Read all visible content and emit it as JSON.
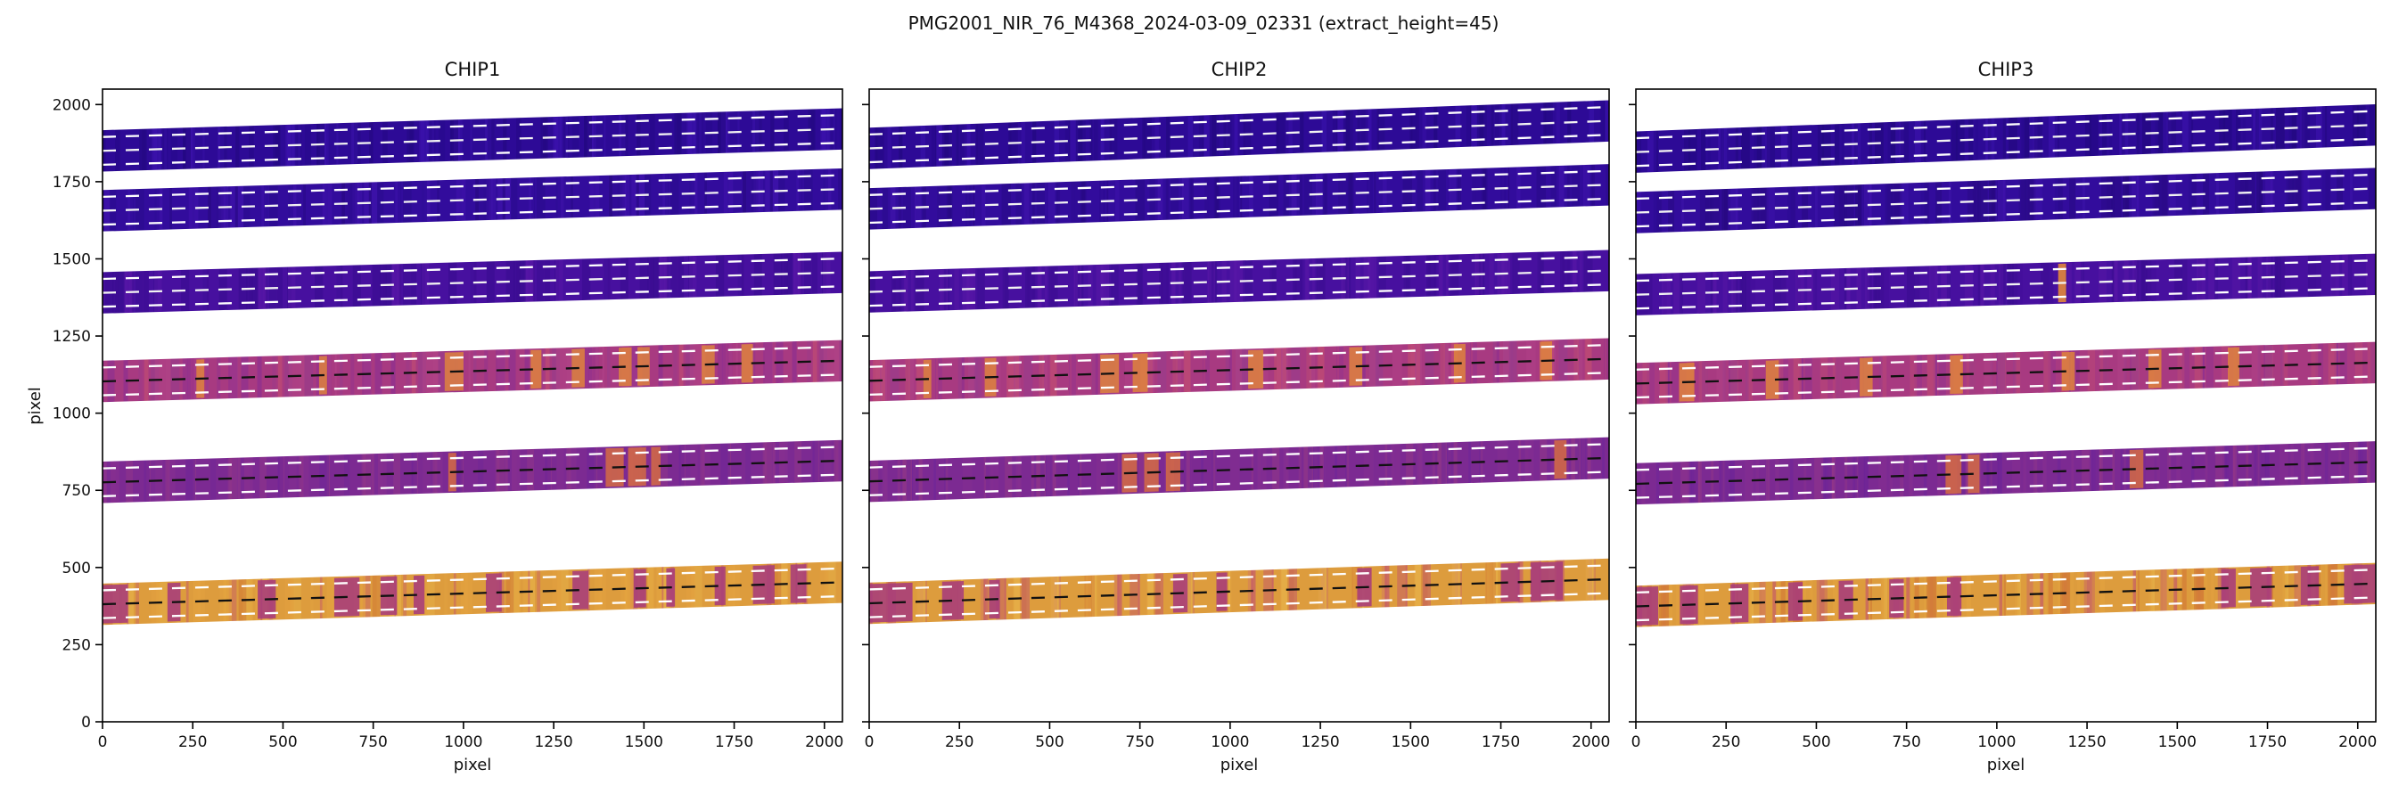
{
  "figure": {
    "title": "PMG2001_NIR_76_M4368_2024-03-09_02331  (extract_height=45)",
    "background": "#ffffff"
  },
  "axes": {
    "xlabel": "pixel",
    "ylabel": "pixel",
    "xlim": [
      0,
      2050
    ],
    "ylim": [
      0,
      2050
    ],
    "xticks": [
      0,
      250,
      500,
      750,
      1000,
      1250,
      1500,
      1750,
      2000
    ],
    "yticks": [
      0,
      250,
      500,
      750,
      1000,
      1250,
      1500,
      1750,
      2000
    ]
  },
  "chart_data": {
    "type": "heatmap",
    "description": "Echelle spectrograph order cutouts (colormap images) with extraction apertures overlaid as dashed lines; center trace dashed, upper/lower extraction boundaries at center +/- extract_height",
    "extract_height": 45,
    "band_half_height": 67,
    "x_range": [
      0,
      2048
    ],
    "y_range": [
      0,
      2048
    ],
    "order_styles": [
      {
        "base": "#2d0a96",
        "variants": [
          "#220780",
          "#3b12ad",
          "#26088a"
        ],
        "center_line": "#f2f2f2",
        "streak_color": "#e1873a",
        "streak_opacity": 0.8
      },
      {
        "base": "#320c9c",
        "variants": [
          "#270882",
          "#4013ad",
          "#2b0a90"
        ],
        "center_line": "#f2f2f2",
        "streak_color": "#e1873a",
        "streak_opacity": 0.8
      },
      {
        "base": "#47109f",
        "variants": [
          "#380b8f",
          "#5a17a8",
          "#3f0d97"
        ],
        "center_line": "#f2f2f2",
        "streak_color": "#e1873a",
        "streak_opacity": 0.9
      },
      {
        "base": "#a83a81",
        "variants": [
          "#8d2f90",
          "#c04b72",
          "#b04387",
          "#973b8c"
        ],
        "center_line": "#111111",
        "streak_color": "#e1873a",
        "streak_opacity": 0.8
      },
      {
        "base": "#7c2a92",
        "variants": [
          "#6b2398",
          "#933787",
          "#872f90"
        ],
        "center_line": "#111111",
        "streak_color": "#d96f3f",
        "streak_opacity": 0.8
      },
      {
        "base": "#dd9c3d",
        "variants": [
          "#d27b36",
          "#e7b44a",
          "#c3586a",
          "#e3a33f"
        ],
        "center_line": "#111111",
        "streak_color": "#a63a7d",
        "streak_opacity": 0.85
      }
    ],
    "subplots": [
      {
        "title": "CHIP1",
        "orders": [
          {
            "center_y_left": 1850,
            "center_y_right": 1921,
            "streaks": []
          },
          {
            "center_y_left": 1656,
            "center_y_right": 1726,
            "streaks": []
          },
          {
            "center_y_left": 1390,
            "center_y_right": 1456,
            "streaks": []
          },
          {
            "center_y_left": 1103,
            "center_y_right": 1170,
            "streaks": [
              [
                260,
                282
              ],
              [
                600,
                622
              ],
              [
                948,
                1000
              ],
              [
                1186,
                1216
              ],
              [
                1300,
                1336
              ],
              [
                1430,
                1466
              ],
              [
                1482,
                1516
              ],
              [
                1660,
                1696
              ],
              [
                1770,
                1802
              ]
            ]
          },
          {
            "center_y_left": 776,
            "center_y_right": 846,
            "streaks": [
              [
                958,
                980
              ],
              [
                1394,
                1444
              ],
              [
                1456,
                1506
              ],
              [
                1520,
                1546
              ]
            ]
          },
          {
            "center_y_left": 381,
            "center_y_right": 452,
            "streaks": [
              [
                0,
                70
              ],
              [
                180,
                216
              ],
              [
                430,
                480
              ],
              [
                642,
                712
              ],
              [
                770,
                816
              ],
              [
                862,
                892
              ],
              [
                1062,
                1106
              ],
              [
                1302,
                1346
              ],
              [
                1472,
                1506
              ],
              [
                1562,
                1586
              ],
              [
                1696,
                1726
              ],
              [
                1802,
                1862
              ],
              [
                1906,
                1950
              ]
            ]
          }
        ]
      },
      {
        "title": "CHIP2",
        "orders": [
          {
            "center_y_left": 1858,
            "center_y_right": 1947,
            "streaks": []
          },
          {
            "center_y_left": 1662,
            "center_y_right": 1740,
            "streaks": []
          },
          {
            "center_y_left": 1393,
            "center_y_right": 1462,
            "streaks": []
          },
          {
            "center_y_left": 1105,
            "center_y_right": 1176,
            "streaks": [
              [
                150,
                172
              ],
              [
                320,
                352
              ],
              [
                640,
                692
              ],
              [
                730,
                772
              ],
              [
                1050,
                1092
              ],
              [
                1330,
                1366
              ],
              [
                1620,
                1652
              ],
              [
                1858,
                1892
              ]
            ]
          },
          {
            "center_y_left": 779,
            "center_y_right": 855,
            "streaks": [
              [
                700,
                742
              ],
              [
                762,
                802
              ],
              [
                822,
                862
              ],
              [
                1898,
                1932
              ]
            ]
          },
          {
            "center_y_left": 384,
            "center_y_right": 462,
            "streaks": [
              [
                0,
                120
              ],
              [
                202,
                262
              ],
              [
                332,
                362
              ],
              [
                842,
                882
              ],
              [
                962,
                992
              ],
              [
                1352,
                1392
              ],
              [
                1750,
                1802
              ],
              [
                1832,
                1922
              ]
            ]
          }
        ]
      },
      {
        "title": "CHIP3",
        "orders": [
          {
            "center_y_left": 1846,
            "center_y_right": 1934,
            "streaks": []
          },
          {
            "center_y_left": 1650,
            "center_y_right": 1728,
            "streaks": []
          },
          {
            "center_y_left": 1384,
            "center_y_right": 1450,
            "streaks": [
              [
                1170,
                1192
              ]
            ]
          },
          {
            "center_y_left": 1096,
            "center_y_right": 1164,
            "streaks": [
              [
                120,
                162
              ],
              [
                360,
                396
              ],
              [
                620,
                656
              ],
              [
                870,
                906
              ],
              [
                1180,
                1216
              ],
              [
                1420,
                1456
              ],
              [
                1640,
                1672
              ]
            ]
          },
          {
            "center_y_left": 771,
            "center_y_right": 842,
            "streaks": [
              [
                858,
                902
              ],
              [
                920,
                952
              ],
              [
                1368,
                1406
              ]
            ]
          },
          {
            "center_y_left": 374,
            "center_y_right": 448,
            "streaks": [
              [
                0,
                62
              ],
              [
                122,
                172
              ],
              [
                262,
                312
              ],
              [
                422,
                462
              ],
              [
                562,
                602
              ],
              [
                702,
                742
              ],
              [
                862,
                902
              ],
              [
                1622,
                1662
              ],
              [
                1702,
                1762
              ],
              [
                1842,
                1892
              ],
              [
                1962,
                2050
              ]
            ]
          }
        ]
      }
    ]
  }
}
